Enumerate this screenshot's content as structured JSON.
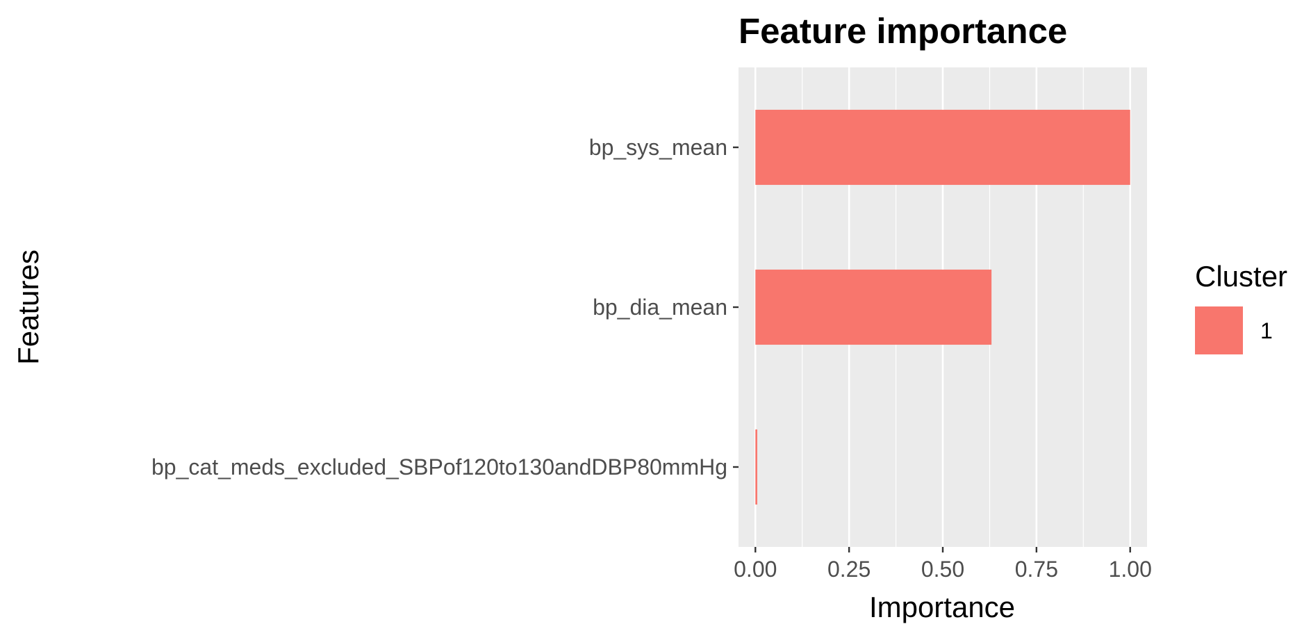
{
  "chart_data": {
    "type": "bar",
    "orientation": "horizontal",
    "title": "Feature importance",
    "xlabel": "Importance",
    "ylabel": "Features",
    "categories": [
      "bp_sys_mean",
      "bp_dia_mean",
      "bp_cat_meds_excluded_SBPof120to130andDBP80mmHg"
    ],
    "series": [
      {
        "name": "1",
        "values": [
          1.0,
          0.63,
          0.005
        ],
        "color": "#F8766D"
      }
    ],
    "xlim": [
      -0.045,
      1.045
    ],
    "xticks": [
      "0.00",
      "0.25",
      "0.50",
      "0.75",
      "1.00"
    ],
    "xtick_values": [
      0,
      0.25,
      0.5,
      0.75,
      1.0
    ],
    "grid": true,
    "panel_background": "#EBEBEB",
    "legend": {
      "title": "Cluster",
      "position": "right"
    }
  }
}
